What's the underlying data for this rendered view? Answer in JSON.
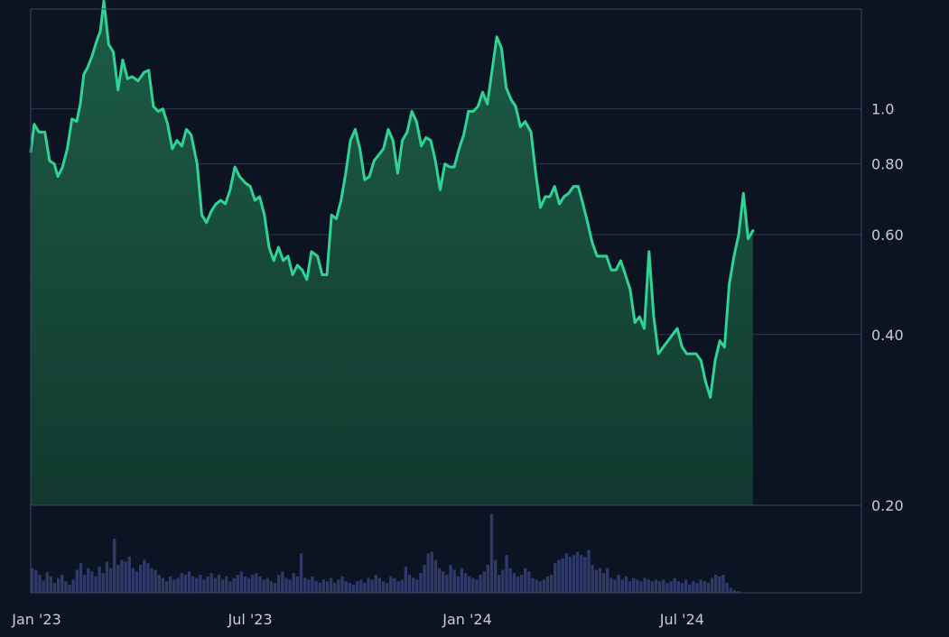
{
  "chart_data": {
    "type": "area",
    "y_scale": "log",
    "ylim": [
      0.2,
      1.5
    ],
    "y_ticks": [
      {
        "value": 0.2,
        "label": "0.20"
      },
      {
        "value": 0.4,
        "label": "0.40"
      },
      {
        "value": 0.6,
        "label": "0.60"
      },
      {
        "value": 0.8,
        "label": "0.80"
      },
      {
        "value": 1.0,
        "label": "1.0"
      }
    ],
    "xlim": [
      "2022-12-27",
      "2024-11-30"
    ],
    "x_ticks": [
      {
        "date": "2023-01-01",
        "label": "Jan '23"
      },
      {
        "date": "2023-07-01",
        "label": "Jul '23"
      },
      {
        "date": "2024-01-01",
        "label": "Jan '24"
      },
      {
        "date": "2024-07-01",
        "label": "Jul '24"
      }
    ],
    "grid": "horizontal",
    "colors": {
      "background": "#0c1322",
      "line": "#2ed495",
      "area_top": "#1d5c47",
      "area_bottom": "#12392f",
      "grid": "#2a3a4a",
      "volume": "#2f3a6b",
      "frame": "#3a4a5a",
      "tick_label": "#c7ccd6"
    },
    "price": [
      [
        "2022-12-27",
        0.84
      ],
      [
        "2022-12-30",
        0.94
      ],
      [
        "2023-01-03",
        0.91
      ],
      [
        "2023-01-08",
        0.91
      ],
      [
        "2023-01-12",
        0.81
      ],
      [
        "2023-01-16",
        0.8
      ],
      [
        "2023-01-19",
        0.76
      ],
      [
        "2023-01-23",
        0.79
      ],
      [
        "2023-01-27",
        0.85
      ],
      [
        "2023-01-31",
        0.96
      ],
      [
        "2023-02-04",
        0.95
      ],
      [
        "2023-02-07",
        1.02
      ],
      [
        "2023-02-10",
        1.15
      ],
      [
        "2023-02-13",
        1.18
      ],
      [
        "2023-02-17",
        1.24
      ],
      [
        "2023-02-21",
        1.32
      ],
      [
        "2023-02-24",
        1.37
      ],
      [
        "2023-02-27",
        1.55
      ],
      [
        "2023-03-03",
        1.3
      ],
      [
        "2023-03-07",
        1.26
      ],
      [
        "2023-03-11",
        1.08
      ],
      [
        "2023-03-15",
        1.22
      ],
      [
        "2023-03-19",
        1.13
      ],
      [
        "2023-03-23",
        1.14
      ],
      [
        "2023-03-28",
        1.12
      ],
      [
        "2023-04-02",
        1.16
      ],
      [
        "2023-04-06",
        1.17
      ],
      [
        "2023-04-10",
        1.01
      ],
      [
        "2023-04-14",
        0.99
      ],
      [
        "2023-04-18",
        1.0
      ],
      [
        "2023-04-22",
        0.94
      ],
      [
        "2023-04-26",
        0.85
      ],
      [
        "2023-04-30",
        0.88
      ],
      [
        "2023-05-04",
        0.86
      ],
      [
        "2023-05-08",
        0.92
      ],
      [
        "2023-05-12",
        0.9
      ],
      [
        "2023-05-17",
        0.8
      ],
      [
        "2023-05-21",
        0.65
      ],
      [
        "2023-05-25",
        0.63
      ],
      [
        "2023-05-29",
        0.66
      ],
      [
        "2023-06-02",
        0.68
      ],
      [
        "2023-06-06",
        0.69
      ],
      [
        "2023-06-10",
        0.68
      ],
      [
        "2023-06-14",
        0.72
      ],
      [
        "2023-06-18",
        0.79
      ],
      [
        "2023-06-22",
        0.76
      ],
      [
        "2023-06-27",
        0.74
      ],
      [
        "2023-07-01",
        0.73
      ],
      [
        "2023-07-05",
        0.69
      ],
      [
        "2023-07-09",
        0.7
      ],
      [
        "2023-07-13",
        0.65
      ],
      [
        "2023-07-17",
        0.57
      ],
      [
        "2023-07-21",
        0.54
      ],
      [
        "2023-07-25",
        0.57
      ],
      [
        "2023-07-29",
        0.54
      ],
      [
        "2023-08-02",
        0.55
      ],
      [
        "2023-08-06",
        0.51
      ],
      [
        "2023-08-10",
        0.53
      ],
      [
        "2023-08-14",
        0.52
      ],
      [
        "2023-08-18",
        0.5
      ],
      [
        "2023-08-22",
        0.56
      ],
      [
        "2023-08-27",
        0.55
      ],
      [
        "2023-08-31",
        0.51
      ],
      [
        "2023-09-04",
        0.51
      ],
      [
        "2023-09-08",
        0.65
      ],
      [
        "2023-09-12",
        0.64
      ],
      [
        "2023-09-16",
        0.69
      ],
      [
        "2023-09-20",
        0.77
      ],
      [
        "2023-09-24",
        0.88
      ],
      [
        "2023-09-28",
        0.92
      ],
      [
        "2023-10-02",
        0.85
      ],
      [
        "2023-10-06",
        0.75
      ],
      [
        "2023-10-10",
        0.76
      ],
      [
        "2023-10-14",
        0.81
      ],
      [
        "2023-10-18",
        0.83
      ],
      [
        "2023-10-22",
        0.85
      ],
      [
        "2023-10-26",
        0.92
      ],
      [
        "2023-10-30",
        0.88
      ],
      [
        "2023-11-03",
        0.77
      ],
      [
        "2023-11-07",
        0.88
      ],
      [
        "2023-11-11",
        0.91
      ],
      [
        "2023-11-15",
        0.99
      ],
      [
        "2023-11-19",
        0.95
      ],
      [
        "2023-11-23",
        0.86
      ],
      [
        "2023-11-27",
        0.89
      ],
      [
        "2023-12-01",
        0.88
      ],
      [
        "2023-12-05",
        0.81
      ],
      [
        "2023-12-09",
        0.72
      ],
      [
        "2023-12-13",
        0.8
      ],
      [
        "2023-12-17",
        0.79
      ],
      [
        "2023-12-21",
        0.79
      ],
      [
        "2023-12-25",
        0.85
      ],
      [
        "2023-12-29",
        0.9
      ],
      [
        "2024-01-02",
        0.99
      ],
      [
        "2024-01-06",
        0.99
      ],
      [
        "2024-01-10",
        1.01
      ],
      [
        "2024-01-14",
        1.07
      ],
      [
        "2024-01-18",
        1.02
      ],
      [
        "2024-01-22",
        1.17
      ],
      [
        "2024-01-26",
        1.34
      ],
      [
        "2024-01-30",
        1.28
      ],
      [
        "2024-02-03",
        1.09
      ],
      [
        "2024-02-07",
        1.04
      ],
      [
        "2024-02-11",
        1.01
      ],
      [
        "2024-02-15",
        0.93
      ],
      [
        "2024-02-19",
        0.95
      ],
      [
        "2024-02-24",
        0.91
      ],
      [
        "2024-02-28",
        0.77
      ],
      [
        "2024-03-03",
        0.67
      ],
      [
        "2024-03-07",
        0.7
      ],
      [
        "2024-03-11",
        0.7
      ],
      [
        "2024-03-15",
        0.73
      ],
      [
        "2024-03-19",
        0.68
      ],
      [
        "2024-03-23",
        0.7
      ],
      [
        "2024-03-27",
        0.71
      ],
      [
        "2024-03-31",
        0.73
      ],
      [
        "2024-04-04",
        0.73
      ],
      [
        "2024-04-08",
        0.68
      ],
      [
        "2024-04-12",
        0.63
      ],
      [
        "2024-04-16",
        0.58
      ],
      [
        "2024-04-20",
        0.55
      ],
      [
        "2024-04-24",
        0.55
      ],
      [
        "2024-04-28",
        0.55
      ],
      [
        "2024-05-02",
        0.52
      ],
      [
        "2024-05-06",
        0.52
      ],
      [
        "2024-05-10",
        0.54
      ],
      [
        "2024-05-14",
        0.51
      ],
      [
        "2024-05-18",
        0.48
      ],
      [
        "2024-05-22",
        0.42
      ],
      [
        "2024-05-26",
        0.43
      ],
      [
        "2024-05-30",
        0.41
      ],
      [
        "2024-06-03",
        0.56
      ],
      [
        "2024-06-07",
        0.43
      ],
      [
        "2024-06-11",
        0.37
      ],
      [
        "2024-06-15",
        0.38
      ],
      [
        "2024-06-19",
        0.39
      ],
      [
        "2024-06-23",
        0.4
      ],
      [
        "2024-06-27",
        0.41
      ],
      [
        "2024-07-01",
        0.38
      ],
      [
        "2024-07-05",
        0.37
      ],
      [
        "2024-07-09",
        0.37
      ],
      [
        "2024-07-13",
        0.37
      ],
      [
        "2024-07-17",
        0.36
      ],
      [
        "2024-07-21",
        0.33
      ],
      [
        "2024-07-25",
        0.31
      ],
      [
        "2024-07-29",
        0.36
      ],
      [
        "2024-08-02",
        0.39
      ],
      [
        "2024-08-06",
        0.38
      ],
      [
        "2024-08-10",
        0.49
      ],
      [
        "2024-08-14",
        0.55
      ],
      [
        "2024-08-18",
        0.6
      ],
      [
        "2024-08-22",
        0.71
      ],
      [
        "2024-08-26",
        0.59
      ],
      [
        "2024-08-30",
        0.61
      ]
    ],
    "volume_relative": [
      0.3,
      0.28,
      0.22,
      0.15,
      0.25,
      0.2,
      0.12,
      0.18,
      0.22,
      0.14,
      0.1,
      0.16,
      0.28,
      0.36,
      0.22,
      0.3,
      0.26,
      0.2,
      0.32,
      0.24,
      0.38,
      0.3,
      0.66,
      0.34,
      0.4,
      0.38,
      0.44,
      0.3,
      0.26,
      0.34,
      0.4,
      0.36,
      0.3,
      0.28,
      0.22,
      0.18,
      0.14,
      0.2,
      0.16,
      0.18,
      0.24,
      0.22,
      0.26,
      0.2,
      0.18,
      0.22,
      0.16,
      0.2,
      0.24,
      0.18,
      0.22,
      0.16,
      0.2,
      0.14,
      0.18,
      0.22,
      0.26,
      0.2,
      0.18,
      0.22,
      0.24,
      0.2,
      0.16,
      0.18,
      0.14,
      0.12,
      0.22,
      0.26,
      0.18,
      0.16,
      0.24,
      0.2,
      0.48,
      0.18,
      0.16,
      0.2,
      0.14,
      0.12,
      0.16,
      0.14,
      0.18,
      0.12,
      0.16,
      0.2,
      0.14,
      0.12,
      0.1,
      0.14,
      0.16,
      0.12,
      0.18,
      0.16,
      0.22,
      0.18,
      0.14,
      0.12,
      0.2,
      0.18,
      0.14,
      0.16,
      0.32,
      0.22,
      0.18,
      0.16,
      0.24,
      0.34,
      0.48,
      0.5,
      0.4,
      0.3,
      0.26,
      0.22,
      0.34,
      0.28,
      0.2,
      0.3,
      0.24,
      0.2,
      0.18,
      0.16,
      0.22,
      0.26,
      0.34,
      0.96,
      0.4,
      0.22,
      0.28,
      0.46,
      0.3,
      0.24,
      0.2,
      0.22,
      0.3,
      0.26,
      0.18,
      0.16,
      0.14,
      0.16,
      0.2,
      0.22,
      0.36,
      0.4,
      0.42,
      0.48,
      0.44,
      0.46,
      0.5,
      0.46,
      0.44,
      0.52,
      0.34,
      0.28,
      0.3,
      0.24,
      0.3,
      0.18,
      0.16,
      0.22,
      0.16,
      0.2,
      0.14,
      0.18,
      0.16,
      0.14,
      0.18,
      0.16,
      0.14,
      0.16,
      0.14,
      0.16,
      0.12,
      0.14,
      0.18,
      0.14,
      0.12,
      0.16,
      0.1,
      0.14,
      0.12,
      0.16,
      0.14,
      0.12,
      0.18,
      0.22,
      0.2,
      0.22,
      0.12,
      0.06,
      0.03,
      0.02
    ]
  }
}
